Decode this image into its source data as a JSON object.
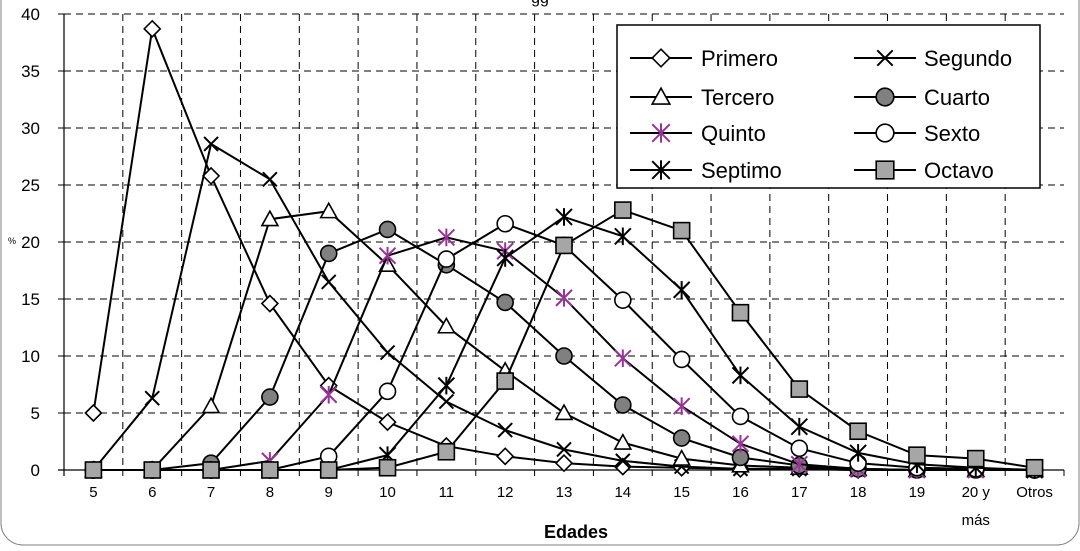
{
  "chart_data": {
    "type": "line",
    "title": "gg",
    "xlabel": "Edades",
    "ylabel": "%",
    "ylim": [
      0,
      40
    ],
    "yticks": [
      0,
      5,
      10,
      15,
      20,
      25,
      30,
      35,
      40
    ],
    "grid": "dashed",
    "legend_position": "top-right",
    "categories": [
      "5",
      "6",
      "7",
      "8",
      "9",
      "10",
      "11",
      "12",
      "13",
      "14",
      "15",
      "16",
      "17",
      "18",
      "19",
      "20 y más",
      "Otros"
    ],
    "category_lines": [
      [
        "5"
      ],
      [
        "6"
      ],
      [
        "7"
      ],
      [
        "8"
      ],
      [
        "9"
      ],
      [
        "10"
      ],
      [
        "11"
      ],
      [
        "12"
      ],
      [
        "13"
      ],
      [
        "14"
      ],
      [
        "15"
      ],
      [
        "16"
      ],
      [
        "17"
      ],
      [
        "18"
      ],
      [
        "19"
      ],
      [
        "20 y",
        "más"
      ],
      [
        "Otros"
      ]
    ],
    "series": [
      {
        "name": "Primero",
        "marker": "diamond-open",
        "color": "#000000",
        "values": [
          5.0,
          38.7,
          25.8,
          14.6,
          7.4,
          4.2,
          2.1,
          1.2,
          0.6,
          0.3,
          0.2,
          0.1,
          0.1,
          0.0,
          0.0,
          0.0,
          0.0
        ]
      },
      {
        "name": "Segundo",
        "marker": "x",
        "color": "#000000",
        "values": [
          0.0,
          6.3,
          28.6,
          25.5,
          16.5,
          10.3,
          6.0,
          3.5,
          1.8,
          0.8,
          0.3,
          0.1,
          0.1,
          0.0,
          0.0,
          0.0,
          0.0
        ]
      },
      {
        "name": "Tercero",
        "marker": "triangle-open",
        "color": "#000000",
        "values": [
          0.0,
          0.0,
          5.6,
          22.0,
          22.7,
          18.0,
          12.6,
          8.7,
          5.0,
          2.4,
          1.0,
          0.4,
          0.2,
          0.1,
          0.0,
          0.0,
          0.0
        ]
      },
      {
        "name": "Cuarto",
        "marker": "circle-gray",
        "color": "#808080",
        "values": [
          0.0,
          0.0,
          0.6,
          6.4,
          19.0,
          21.1,
          18.0,
          14.7,
          10.0,
          5.7,
          2.8,
          1.1,
          0.4,
          0.1,
          0.0,
          0.0,
          0.0
        ]
      },
      {
        "name": "Quinto",
        "marker": "asterisk",
        "color": "#993399",
        "values": [
          0.0,
          0.0,
          0.0,
          0.8,
          6.6,
          18.8,
          20.4,
          19.2,
          15.1,
          9.8,
          5.6,
          2.3,
          0.5,
          0.1,
          0.0,
          0.0,
          0.0
        ]
      },
      {
        "name": "Sexto",
        "marker": "circle-open",
        "color": "#000000",
        "values": [
          0.0,
          0.0,
          0.0,
          0.0,
          1.2,
          6.9,
          18.5,
          21.6,
          19.7,
          14.9,
          9.7,
          4.7,
          1.9,
          0.6,
          0.2,
          0.1,
          0.0
        ]
      },
      {
        "name": "Septimo",
        "marker": "star",
        "color": "#000000",
        "values": [
          0.0,
          0.0,
          0.0,
          0.0,
          0.0,
          1.3,
          7.4,
          18.6,
          22.2,
          20.5,
          15.8,
          8.3,
          3.8,
          1.5,
          0.5,
          0.2,
          0.0
        ]
      },
      {
        "name": "Octavo",
        "marker": "square-gray",
        "color": "#999999",
        "values": [
          0.0,
          0.0,
          0.0,
          0.0,
          0.0,
          0.2,
          1.6,
          7.8,
          19.7,
          22.8,
          21.0,
          13.8,
          7.1,
          3.4,
          1.3,
          1.0,
          0.2
        ]
      }
    ]
  }
}
